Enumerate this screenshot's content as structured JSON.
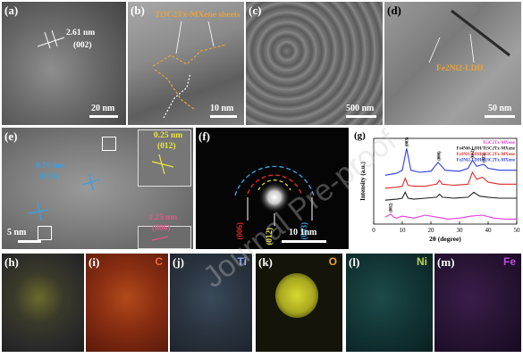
{
  "panels": {
    "a": {
      "label": "(a)",
      "measure": "2.61 nm",
      "plane": "(002)",
      "scale": "20 nm"
    },
    "b": {
      "label": "(b)",
      "annotation": "Ti3C2Tx-MXene sheets",
      "scale": "10 nm"
    },
    "c": {
      "label": "(c)",
      "scale": "500 nm"
    },
    "d": {
      "label": "(d)",
      "annotation": "Fe2Ni2-LDH",
      "scale": "50 nm"
    },
    "e": {
      "label": "(e)",
      "blue_measure": "0.76 nm",
      "blue_plane": "(003)",
      "yellow_measure": "0.25 nm",
      "yellow_plane": "(012)",
      "pink_measure": "0.25 nm",
      "pink_plane": "(006)",
      "scale": "5 nm"
    },
    "f": {
      "label": "(f)",
      "ring_red": "(006)",
      "ring_yellow": "(012)",
      "ring_blue": "(003)",
      "scale": "10 1nm"
    },
    "g": {
      "label": "(g)"
    },
    "h": {
      "label": "(h)"
    },
    "i": {
      "label": "(i)",
      "element": "C"
    },
    "j": {
      "label": "(j)",
      "element": "Ti"
    },
    "k": {
      "label": "(k)",
      "element": "O"
    },
    "l": {
      "label": "(l)",
      "element": "Ni"
    },
    "m": {
      "label": "(m)",
      "element": "Fe"
    }
  },
  "watermark": "Journal Pre-proof",
  "chart_data": {
    "type": "line",
    "title": "",
    "xlabel": "2θ (degree)",
    "ylabel": "Intensity (a.u.)",
    "xlim": [
      0,
      50
    ],
    "x_ticks": [
      0,
      10,
      20,
      30,
      40,
      50
    ],
    "grid": false,
    "legend_position": "top-right",
    "legend": [
      {
        "name": "Ti3C2Tx-MXene",
        "color": "#e03ad8"
      },
      {
        "name": "Fe4Ni0-LDH/Ti3C2Tx-MXene",
        "color": "#222222"
      },
      {
        "name": "Fe3Ni1-LDH/Ti3C2Tx-MXene",
        "color": "#e02a2a"
      },
      {
        "name": "Fe2Ni2-LDH/Ti3C2Tx-MXene",
        "color": "#2a3ae0"
      }
    ],
    "series": [
      {
        "name": "Ti3C2Tx-MXene",
        "color": "#e03ad8",
        "x": [
          4,
          6,
          7,
          8,
          10,
          14,
          18,
          22,
          26,
          30,
          34,
          38,
          42,
          46,
          50
        ],
        "y": [
          0.7,
          1.0,
          0.7,
          0.6,
          0.8,
          0.6,
          0.9,
          0.7,
          0.5,
          0.6,
          0.8,
          0.9,
          0.6,
          0.5,
          0.5
        ]
      },
      {
        "name": "Fe4Ni0-LDH/Ti3C2Tx-MXene",
        "color": "#222222",
        "x": [
          4,
          8,
          10,
          11,
          12,
          14,
          18,
          22,
          23,
          24,
          28,
          33,
          35,
          37,
          40,
          44,
          50
        ],
        "y": [
          2.4,
          2.5,
          2.6,
          3.2,
          2.6,
          2.5,
          2.6,
          2.7,
          3.0,
          2.7,
          2.6,
          2.7,
          3.2,
          2.8,
          2.7,
          2.6,
          2.6
        ]
      },
      {
        "name": "Fe3Ni1-LDH/Ti3C2Tx-MXene",
        "color": "#e02a2a",
        "x": [
          4,
          8,
          10,
          11,
          12,
          14,
          18,
          22,
          23,
          24,
          28,
          33,
          34.5,
          36,
          38,
          40,
          44,
          50
        ],
        "y": [
          3.6,
          3.7,
          3.8,
          4.6,
          3.9,
          3.8,
          3.8,
          4.0,
          4.4,
          4.0,
          3.9,
          4.0,
          5.2,
          4.5,
          4.7,
          4.2,
          4.0,
          4.0
        ]
      },
      {
        "name": "Fe2Ni2-LDH/Ti3C2Tx-MXene",
        "color": "#2a3ae0",
        "x": [
          4,
          8,
          10,
          11.5,
          13,
          16,
          20,
          22.5,
          25,
          30,
          33,
          34.5,
          36,
          38.5,
          40,
          44,
          50
        ],
        "y": [
          4.9,
          5.1,
          5.4,
          7.6,
          5.4,
          5.2,
          5.3,
          6.2,
          5.4,
          5.3,
          5.6,
          6.4,
          5.8,
          6.0,
          5.6,
          5.4,
          5.4
        ]
      }
    ],
    "peak_labels": [
      {
        "text": "(003)",
        "x": 11.5,
        "y": 7.6
      },
      {
        "text": "(006)",
        "x": 22.8,
        "y": 6.2
      },
      {
        "text": "(012)",
        "x": 34.5,
        "y": 6.4
      },
      {
        "text": "(015)",
        "x": 38.5,
        "y": 6.0
      },
      {
        "text": "(002)",
        "x": 6.0,
        "y": 1.0
      }
    ],
    "ylim": [
      0,
      8.6
    ]
  }
}
